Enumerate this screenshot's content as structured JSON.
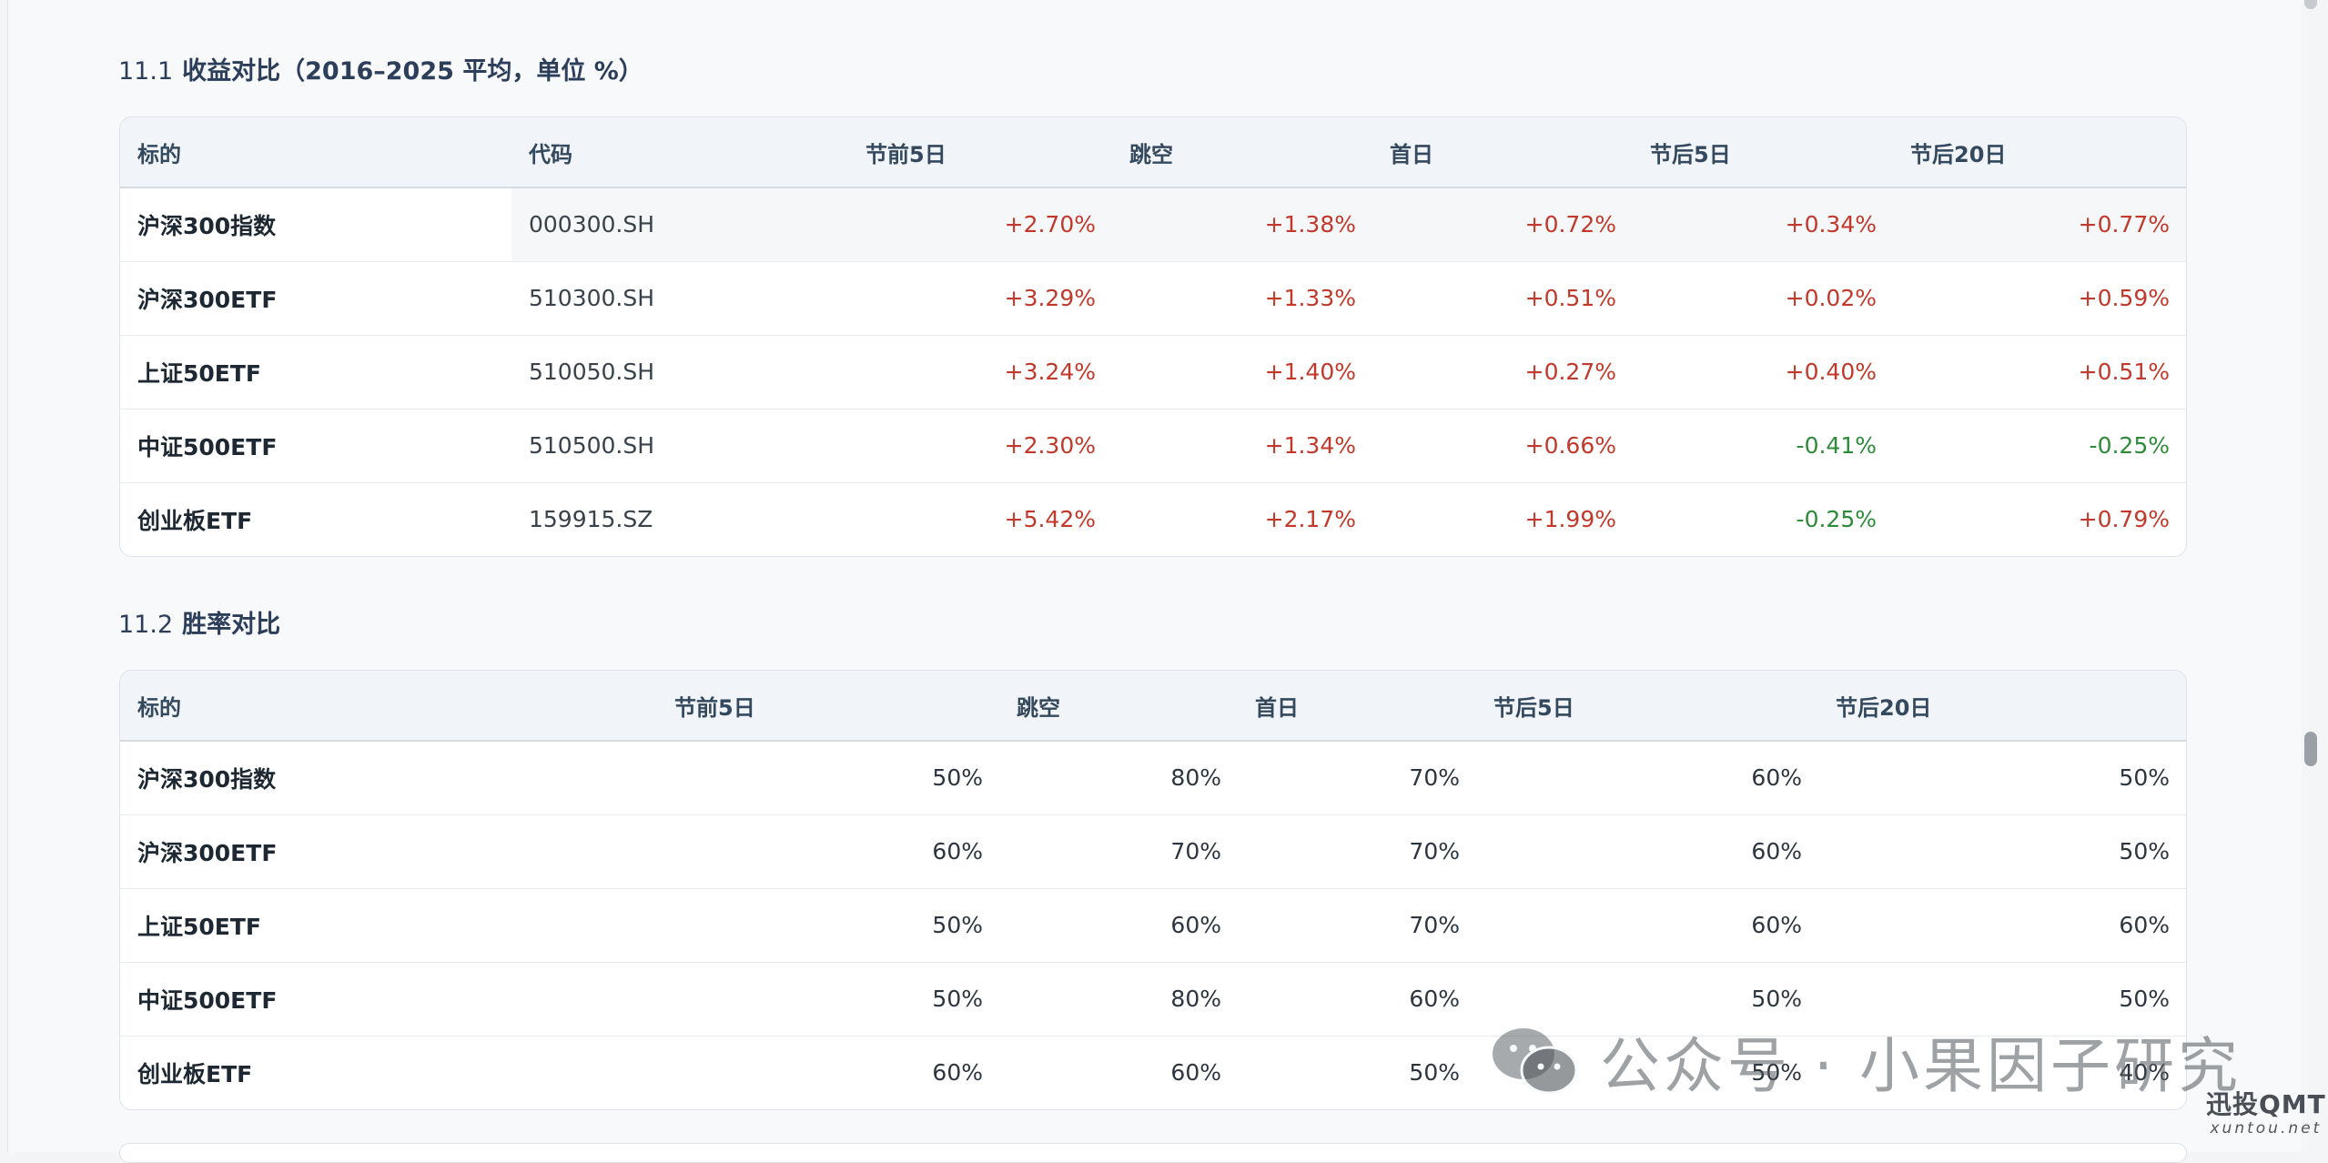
{
  "section1": {
    "num": "11.1",
    "title": "收益对比（2016–2025 平均，单位 %）",
    "headers": [
      "标的",
      "代码",
      "节前5日",
      "跳空",
      "首日",
      "节后5日",
      "节后20日"
    ],
    "rows": [
      {
        "name": "沪深300指数",
        "code": "000300.SH",
        "values": [
          "+2.70%",
          "+1.38%",
          "+0.72%",
          "+0.34%",
          "+0.77%"
        ],
        "signs": [
          "pos",
          "pos",
          "pos",
          "pos",
          "pos"
        ]
      },
      {
        "name": "沪深300ETF",
        "code": "510300.SH",
        "values": [
          "+3.29%",
          "+1.33%",
          "+0.51%",
          "+0.02%",
          "+0.59%"
        ],
        "signs": [
          "pos",
          "pos",
          "pos",
          "pos",
          "pos"
        ]
      },
      {
        "name": "上证50ETF",
        "code": "510050.SH",
        "values": [
          "+3.24%",
          "+1.40%",
          "+0.27%",
          "+0.40%",
          "+0.51%"
        ],
        "signs": [
          "pos",
          "pos",
          "pos",
          "pos",
          "pos"
        ]
      },
      {
        "name": "中证500ETF",
        "code": "510500.SH",
        "values": [
          "+2.30%",
          "+1.34%",
          "+0.66%",
          "-0.41%",
          "-0.25%"
        ],
        "signs": [
          "pos",
          "pos",
          "pos",
          "neg",
          "neg"
        ]
      },
      {
        "name": "创业板ETF",
        "code": "159915.SZ",
        "values": [
          "+5.42%",
          "+2.17%",
          "+1.99%",
          "-0.25%",
          "+0.79%"
        ],
        "signs": [
          "pos",
          "pos",
          "pos",
          "neg",
          "pos"
        ]
      }
    ]
  },
  "section2": {
    "num": "11.2",
    "title": "胜率对比",
    "headers": [
      "标的",
      "节前5日",
      "跳空",
      "首日",
      "节后5日",
      "节后20日"
    ],
    "rows": [
      {
        "name": "沪深300指数",
        "values": [
          "50%",
          "80%",
          "70%",
          "60%",
          "50%"
        ]
      },
      {
        "name": "沪深300ETF",
        "values": [
          "60%",
          "70%",
          "70%",
          "60%",
          "50%"
        ]
      },
      {
        "name": "上证50ETF",
        "values": [
          "50%",
          "60%",
          "70%",
          "60%",
          "60%"
        ]
      },
      {
        "name": "中证500ETF",
        "values": [
          "50%",
          "80%",
          "60%",
          "50%",
          "50%"
        ]
      },
      {
        "name": "创业板ETF",
        "values": [
          "60%",
          "60%",
          "50%",
          "50%",
          "40%"
        ]
      }
    ]
  },
  "watermark": {
    "text": "公众号 · 小果因子研究",
    "icon": "wechat-icon"
  },
  "brand": {
    "line1": "迅投QMT",
    "line2": "xuntou.net"
  },
  "colors": {
    "positive": "#c0392b",
    "negative": "#2e8b3a",
    "header_bg": "#f1f4f8"
  }
}
